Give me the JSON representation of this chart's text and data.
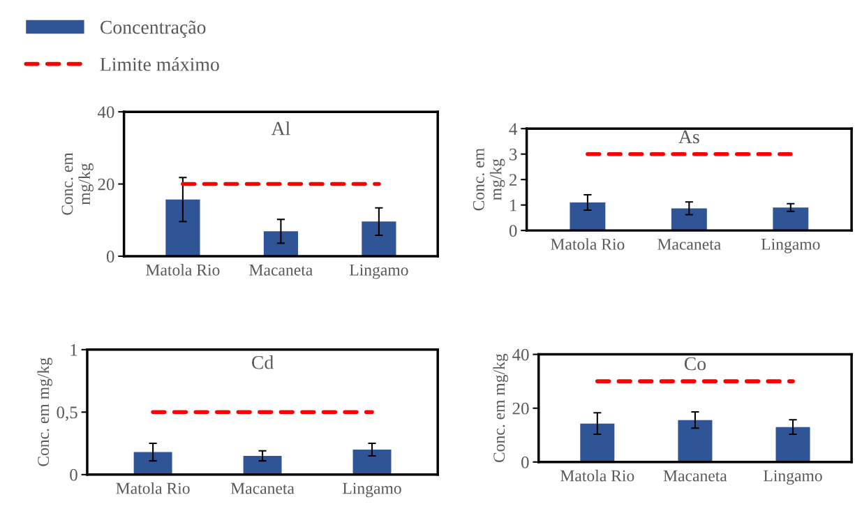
{
  "chart_data": [
    {
      "type": "bar",
      "title": "Al",
      "ylabel": "Conc. em\nmg/kg",
      "categories": [
        "Matola Rio",
        "Macaneta",
        "Lingamo"
      ],
      "ylim": [
        0,
        40
      ],
      "yticks": [
        0,
        20,
        40
      ],
      "grid": false,
      "legend": "top left",
      "series": [
        {
          "name": "Concentração",
          "color": "#2f5597",
          "values": [
            15.7,
            6.9,
            9.6
          ],
          "errors": [
            6.1,
            3.3,
            3.8
          ]
        },
        {
          "name": "Limite máximo",
          "type": "line",
          "color": "#ff0000",
          "line_style": "dashed",
          "values": [
            20,
            20,
            20
          ]
        }
      ]
    },
    {
      "type": "bar",
      "title": "As",
      "ylabel": "Conc. em\nmg/kg",
      "categories": [
        "Matola Rio",
        "Macaneta",
        "Lingamo"
      ],
      "ylim": [
        0,
        4
      ],
      "yticks": [
        0,
        1,
        2,
        3,
        4
      ],
      "grid": false,
      "series": [
        {
          "color": "#2f5597",
          "values": [
            1.1,
            0.87,
            0.9
          ],
          "errors": [
            0.3,
            0.25,
            0.15
          ]
        },
        {
          "type": "line",
          "color": "#ff0000",
          "line_style": "dashed",
          "values": [
            3,
            3,
            3
          ]
        }
      ]
    },
    {
      "type": "bar",
      "title": "Cd",
      "ylabel": "Conc. em mg/kg",
      "categories": [
        "Matola Rio",
        "Macaneta",
        "Lingamo"
      ],
      "ylim": [
        0,
        1
      ],
      "yticks": [
        0,
        {
          "value": 0.5,
          "label": "0,5"
        },
        1
      ],
      "grid": false,
      "series": [
        {
          "color": "#2f5597",
          "values": [
            0.18,
            0.15,
            0.2
          ],
          "errors": [
            0.07,
            0.04,
            0.05
          ]
        },
        {
          "type": "line",
          "color": "#ff0000",
          "line_style": "dashed",
          "values": [
            0.5,
            0.5,
            0.5
          ]
        }
      ]
    },
    {
      "type": "bar",
      "title": "Co",
      "ylabel": "Conc. em mg/kg",
      "categories": [
        "Matola Rio",
        "Macaneta",
        "Lingamo"
      ],
      "ylim": [
        0,
        40
      ],
      "yticks": [
        0,
        20,
        40
      ],
      "grid": false,
      "series": [
        {
          "color": "#2f5597",
          "values": [
            14.3,
            15.6,
            13
          ],
          "errors": [
            4,
            3,
            2.7
          ]
        },
        {
          "type": "line",
          "color": "#ff0000",
          "line_style": "dashed",
          "values": [
            30,
            30,
            30
          ]
        }
      ]
    }
  ]
}
